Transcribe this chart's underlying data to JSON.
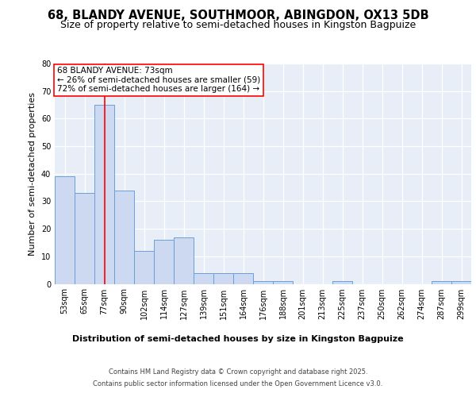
{
  "title": "68, BLANDY AVENUE, SOUTHMOOR, ABINGDON, OX13 5DB",
  "subtitle": "Size of property relative to semi-detached houses in Kingston Bagpuize",
  "xlabel": "Distribution of semi-detached houses by size in Kingston Bagpuize",
  "ylabel": "Number of semi-detached properties",
  "bins": [
    "53sqm",
    "65sqm",
    "77sqm",
    "90sqm",
    "102sqm",
    "114sqm",
    "127sqm",
    "139sqm",
    "151sqm",
    "164sqm",
    "176sqm",
    "188sqm",
    "201sqm",
    "213sqm",
    "225sqm",
    "237sqm",
    "250sqm",
    "262sqm",
    "274sqm",
    "287sqm",
    "299sqm"
  ],
  "values": [
    39,
    33,
    65,
    34,
    12,
    16,
    17,
    4,
    4,
    4,
    1,
    1,
    0,
    0,
    1,
    0,
    0,
    0,
    0,
    1,
    1
  ],
  "bar_color": "#ccd9f0",
  "bar_edge_color": "#6a9fd8",
  "red_line_x": 2,
  "annotation_title": "68 BLANDY AVENUE: 73sqm",
  "annotation_line1": "← 26% of semi-detached houses are smaller (59)",
  "annotation_line2": "72% of semi-detached houses are larger (164) →",
  "footer1": "Contains HM Land Registry data © Crown copyright and database right 2025.",
  "footer2": "Contains public sector information licensed under the Open Government Licence v3.0.",
  "ylim": [
    0,
    80
  ],
  "bg_color": "#ffffff",
  "plot_bg_color": "#e8eef8",
  "grid_color": "#ffffff",
  "title_fontsize": 10.5,
  "subtitle_fontsize": 9,
  "axis_label_fontsize": 8,
  "tick_fontsize": 7,
  "annotation_fontsize": 7.5,
  "footer_fontsize": 6
}
